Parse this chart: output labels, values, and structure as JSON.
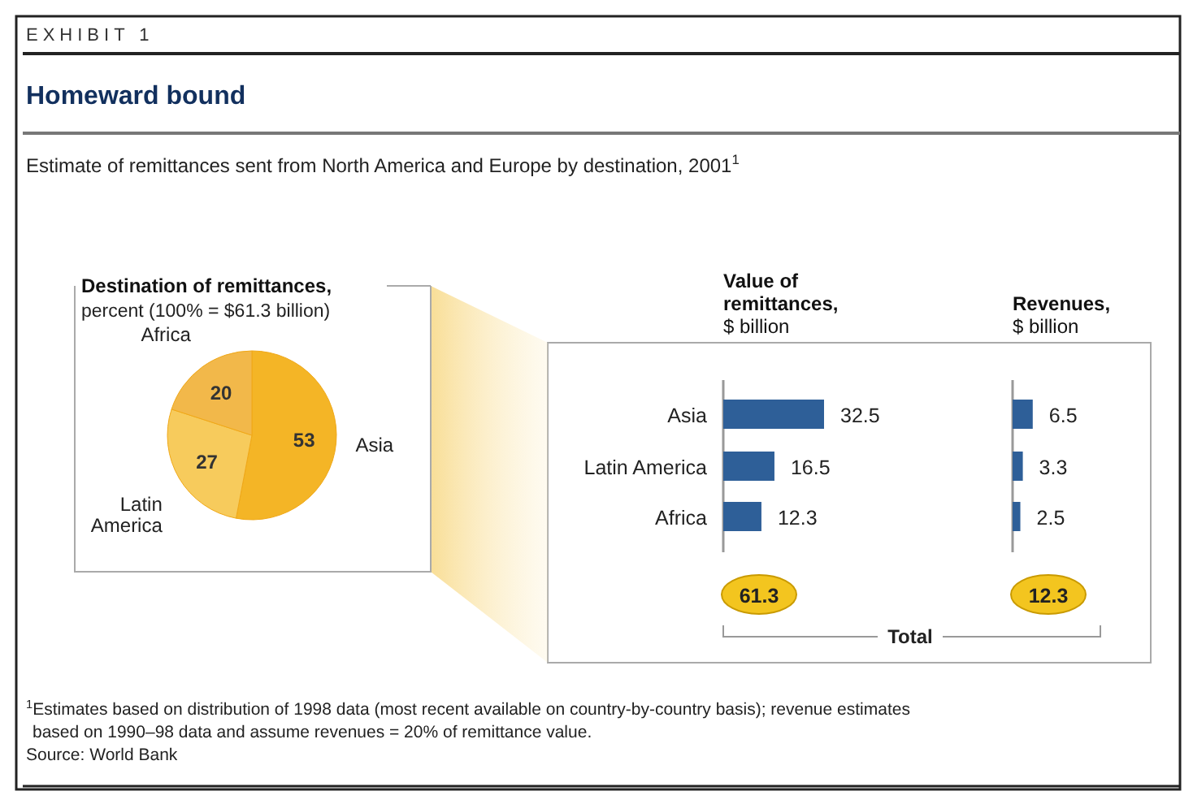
{
  "chart_data": [
    {
      "type": "other",
      "title": "Homeward bound",
      "subtitle": "Estimate of remittances sent from North America and Europe by destination, 2001$^{1}$",
      "annotations": [
        "EXHIBIT 1",
        "$^{1}$Estimates based on distribution of 1998 data (most recent available on country-by-country basis); revenue estimates based on 1990–98 data and assume revenues = 20% of remittance value.",
        "Source: World Bank"
      ]
    },
    {
      "type": "pie",
      "title": "Destination of remittances,",
      "subtitle": "percent (100% = $61.3 billion)",
      "categories": [
        "Asia",
        "Latin America",
        "Africa"
      ],
      "values": [
        53,
        27,
        20
      ],
      "colors": [
        "#f4b526",
        "#f7cb5c",
        "#f2b84a"
      ],
      "data_labels": true
    },
    {
      "type": "bar",
      "orientation": "horizontal",
      "title": "Value of remittances, $ billion",
      "categories": [
        "Asia",
        "Latin America",
        "Africa"
      ],
      "values": [
        32.5,
        16.5,
        12.3
      ],
      "color": "#2e5f98",
      "data_labels": true,
      "annotations": [
        "61.3",
        "Total"
      ]
    },
    {
      "type": "bar",
      "orientation": "horizontal",
      "title": "Revenues, $ billion",
      "categories": [
        null,
        null,
        null
      ],
      "values": [
        6.5,
        3.3,
        2.5
      ],
      "color": "#2e5f98",
      "data_labels": true,
      "annotations": [
        "12.3"
      ]
    }
  ]
}
